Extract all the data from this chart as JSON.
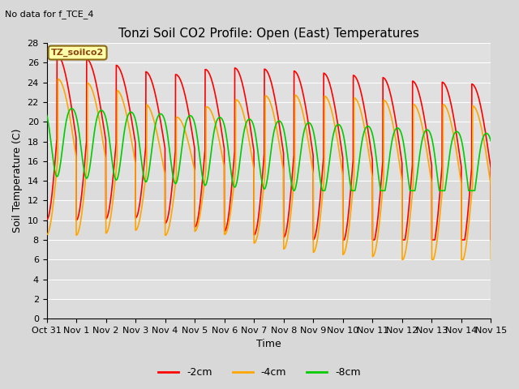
{
  "title": "Tonzi Soil CO2 Profile: Open (East) Temperatures",
  "no_data_text": "No data for f_TCE_4",
  "legend_box_text": "TZ_soilco2",
  "xlabel": "Time",
  "ylabel": "Soil Temperature (C)",
  "ylim": [
    0,
    28
  ],
  "xlim_days": [
    0,
    15
  ],
  "x_tick_labels": [
    "Oct 31",
    "Nov 1",
    "Nov 2",
    "Nov 3",
    "Nov 4",
    "Nov 5",
    "Nov 6",
    "Nov 7",
    "Nov 8",
    "Nov 9",
    "Nov 10",
    "Nov 11",
    "Nov 12",
    "Nov 13",
    "Nov 14",
    "Nov 15"
  ],
  "background_color": "#d8d8d8",
  "plot_bg_color": "#e0e0e0",
  "grid_color": "#ffffff",
  "line_colors": {
    "m2cm": "#ff0000",
    "m4cm": "#ffa500",
    "m8cm": "#00cc00"
  },
  "legend_labels": [
    "-2cm",
    "-4cm",
    "-8cm"
  ]
}
